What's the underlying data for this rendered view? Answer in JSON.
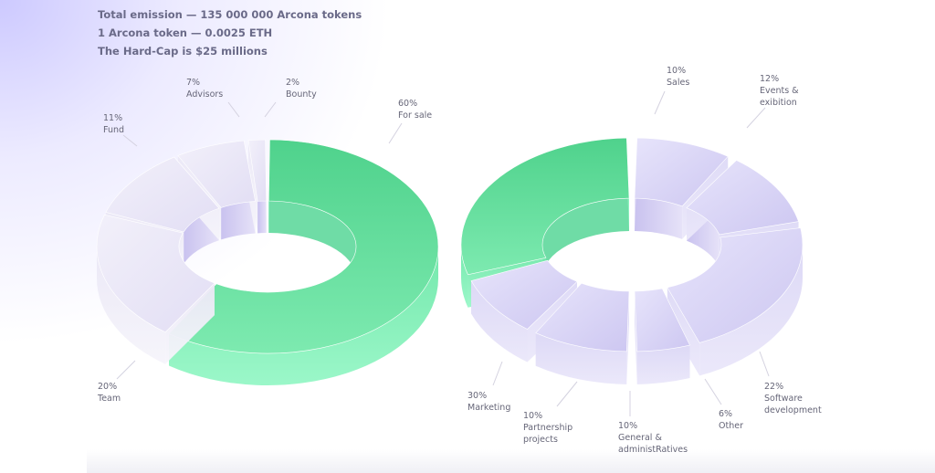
{
  "header": {
    "line1": "Total emission — 135 000 000 Arcona tokens",
    "line2": "1 Arcona token — 0.0025 ETH",
    "line3": "The Hard-Cap is $25 millions"
  },
  "colors": {
    "green_top": "#5ed898",
    "green_side": "#8af6c0",
    "lavender_top": "#d8d4f5",
    "lavender_side": "#e4e0f8",
    "light_top": "#ece9f7",
    "light_side": "#f3f1fa",
    "label": "#666678",
    "header": "#6a6a88"
  },
  "chart_data": [
    {
      "type": "pie",
      "variant": "3d-donut",
      "slices": [
        {
          "pct": "60%",
          "label": "For sale",
          "value": 60,
          "color": "green"
        },
        {
          "pct": "20%",
          "label": "Team",
          "value": 20,
          "color": "light"
        },
        {
          "pct": "11%",
          "label": "Fund",
          "value": 11,
          "color": "light"
        },
        {
          "pct": "7%",
          "label": "Advisors",
          "value": 7,
          "color": "light"
        },
        {
          "pct": "2%",
          "label": "Bounty",
          "value": 2,
          "color": "light"
        }
      ]
    },
    {
      "type": "pie",
      "variant": "3d-donut",
      "slices": [
        {
          "pct": "10%",
          "label": "Sales",
          "value": 10,
          "color": "lavender"
        },
        {
          "pct": "12%",
          "label": "Events & exibition",
          "value": 12,
          "color": "lavender"
        },
        {
          "pct": "22%",
          "label": "Software development",
          "value": 22,
          "color": "lavender"
        },
        {
          "pct": "6%",
          "label": "Other",
          "value": 6,
          "color": "lavender"
        },
        {
          "pct": "10%",
          "label": "General & administRatives",
          "value": 10,
          "color": "lavender"
        },
        {
          "pct": "10%",
          "label": "Partnership projects",
          "value": 10,
          "color": "lavender"
        },
        {
          "pct": "30%",
          "label": "Marketing",
          "value": 30,
          "color": "green"
        }
      ]
    }
  ]
}
